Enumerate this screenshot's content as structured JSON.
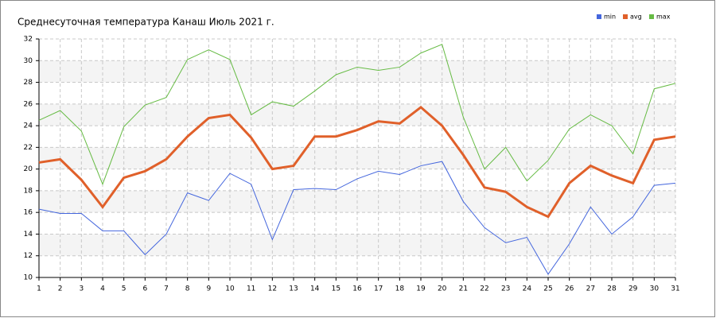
{
  "chart_data": {
    "type": "line",
    "title": "Среднесуточная температура Канаш  Июль 2021 г.",
    "x": [
      1,
      2,
      3,
      4,
      5,
      6,
      7,
      8,
      9,
      10,
      11,
      12,
      13,
      14,
      15,
      16,
      17,
      18,
      19,
      20,
      21,
      22,
      23,
      24,
      25,
      26,
      27,
      28,
      29,
      30,
      31
    ],
    "xlim": [
      1,
      31
    ],
    "xticks": [
      1,
      2,
      3,
      4,
      5,
      6,
      7,
      8,
      9,
      10,
      11,
      12,
      13,
      14,
      15,
      16,
      17,
      18,
      19,
      20,
      21,
      22,
      23,
      24,
      25,
      26,
      27,
      28,
      29,
      30,
      31
    ],
    "ylim": [
      10,
      32
    ],
    "yticks": [
      10,
      12,
      14,
      16,
      18,
      20,
      22,
      24,
      26,
      28,
      30,
      32
    ],
    "grid": true,
    "legend": "top-right",
    "series": [
      {
        "name": "min",
        "color": "#4466dd",
        "values": [
          16.3,
          15.9,
          15.9,
          14.3,
          14.3,
          12.1,
          14.0,
          17.8,
          17.1,
          19.6,
          18.6,
          13.5,
          18.1,
          18.2,
          18.1,
          19.1,
          19.8,
          19.5,
          20.3,
          20.7,
          17.0,
          14.6,
          13.2,
          13.7,
          10.3,
          13.1,
          16.5,
          14.0,
          15.6,
          18.5,
          18.7
        ]
      },
      {
        "name": "avg",
        "color": "#e0602a",
        "values": [
          20.6,
          20.9,
          19.0,
          16.5,
          19.2,
          19.8,
          20.9,
          23.0,
          24.7,
          25.0,
          22.9,
          20.0,
          20.3,
          23.0,
          23.0,
          23.6,
          24.4,
          24.2,
          25.7,
          24.0,
          21.3,
          18.3,
          17.9,
          16.5,
          15.6,
          18.7,
          20.3,
          19.4,
          18.7,
          22.7,
          23.0
        ]
      },
      {
        "name": "max",
        "color": "#66bb44",
        "values": [
          24.5,
          25.4,
          23.5,
          18.6,
          23.9,
          25.9,
          26.6,
          30.1,
          31.0,
          30.1,
          25.0,
          26.2,
          25.8,
          27.2,
          28.7,
          29.4,
          29.1,
          29.4,
          30.7,
          31.5,
          24.8,
          20.0,
          22.0,
          18.9,
          20.8,
          23.7,
          25.0,
          24.0,
          21.4,
          27.4,
          27.9
        ]
      }
    ]
  }
}
